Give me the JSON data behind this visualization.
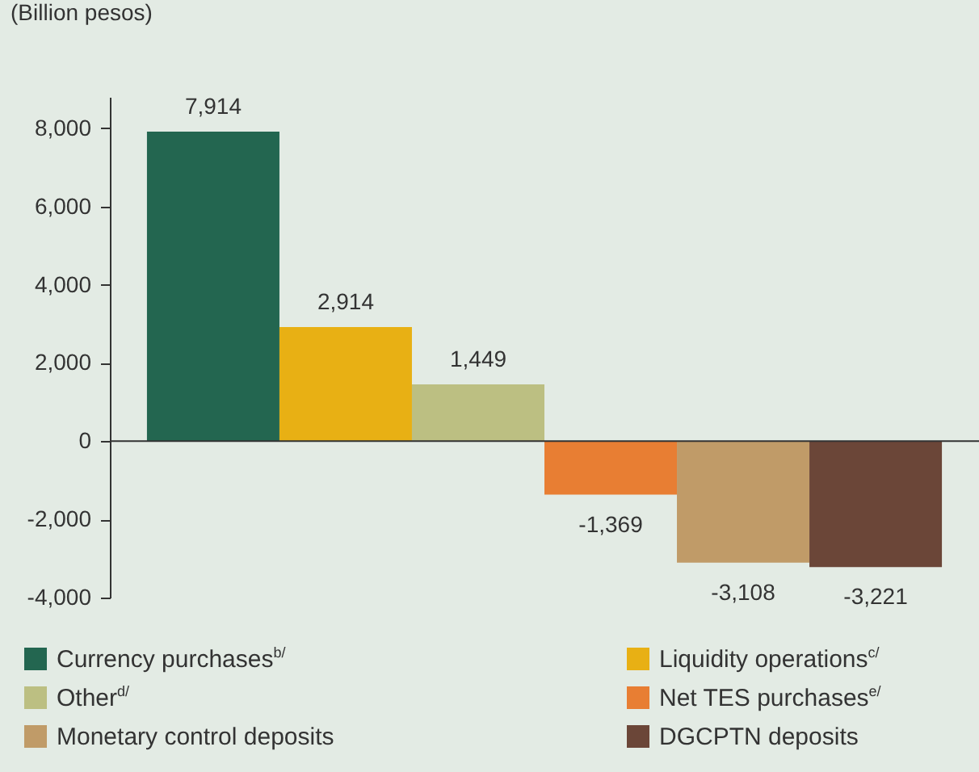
{
  "chart_data": {
    "type": "bar",
    "ylabel": "(Billion pesos)",
    "stacked": true,
    "categories": [
      null,
      null,
      null,
      null,
      null,
      null
    ],
    "series": [
      {
        "name": "Currency purchases$^{b/}$",
        "color": "#236650",
        "values": [
          7914,
          null,
          null,
          null,
          null,
          null
        ],
        "value_labels": [
          "7,914",
          null,
          null,
          null,
          null,
          null
        ]
      },
      {
        "name": "Liquidity operations$^{c/}$",
        "color": "#e8b014",
        "values": [
          null,
          2914,
          null,
          null,
          null,
          null
        ],
        "value_labels": [
          null,
          "2,914",
          null,
          null,
          null,
          null
        ]
      },
      {
        "name": "Other$^{d/}$",
        "color": "#bcbf82",
        "values": [
          null,
          null,
          1449,
          null,
          null,
          null
        ],
        "value_labels": [
          null,
          null,
          "1,449",
          null,
          null,
          null
        ]
      },
      {
        "name": "Net TES purchases$^{e/}$",
        "color": "#e87e33",
        "values": [
          null,
          null,
          null,
          -1369,
          null,
          null
        ],
        "value_labels": [
          null,
          null,
          null,
          "-1,369",
          null,
          null
        ]
      },
      {
        "name": "Monetary control deposits",
        "color": "#c09b68",
        "values": [
          null,
          null,
          null,
          null,
          -3108,
          null
        ],
        "value_labels": [
          null,
          null,
          null,
          null,
          "-3,108",
          null
        ]
      },
      {
        "name": "DGCPTN deposits",
        "color": "#6b4638",
        "values": [
          null,
          null,
          null,
          null,
          null,
          -3221
        ],
        "value_labels": [
          null,
          null,
          null,
          null,
          null,
          "-3,221"
        ]
      }
    ],
    "ylim": [
      -4000,
      8800
    ],
    "yticks": [
      {
        "value": -4000,
        "label": "-4,000"
      },
      {
        "value": -2000,
        "label": "-2,000"
      },
      0,
      {
        "value": 2000,
        "label": "2,000"
      },
      {
        "value": 4000,
        "label": "4,000"
      },
      {
        "value": 6000,
        "label": "6,000"
      },
      {
        "value": 8000,
        "label": "8,000"
      }
    ],
    "ref_lines": [
      {
        "axis": "y",
        "value": 0,
        "color": "#333333"
      }
    ],
    "legend": "bottom",
    "tick_labels": "y"
  }
}
